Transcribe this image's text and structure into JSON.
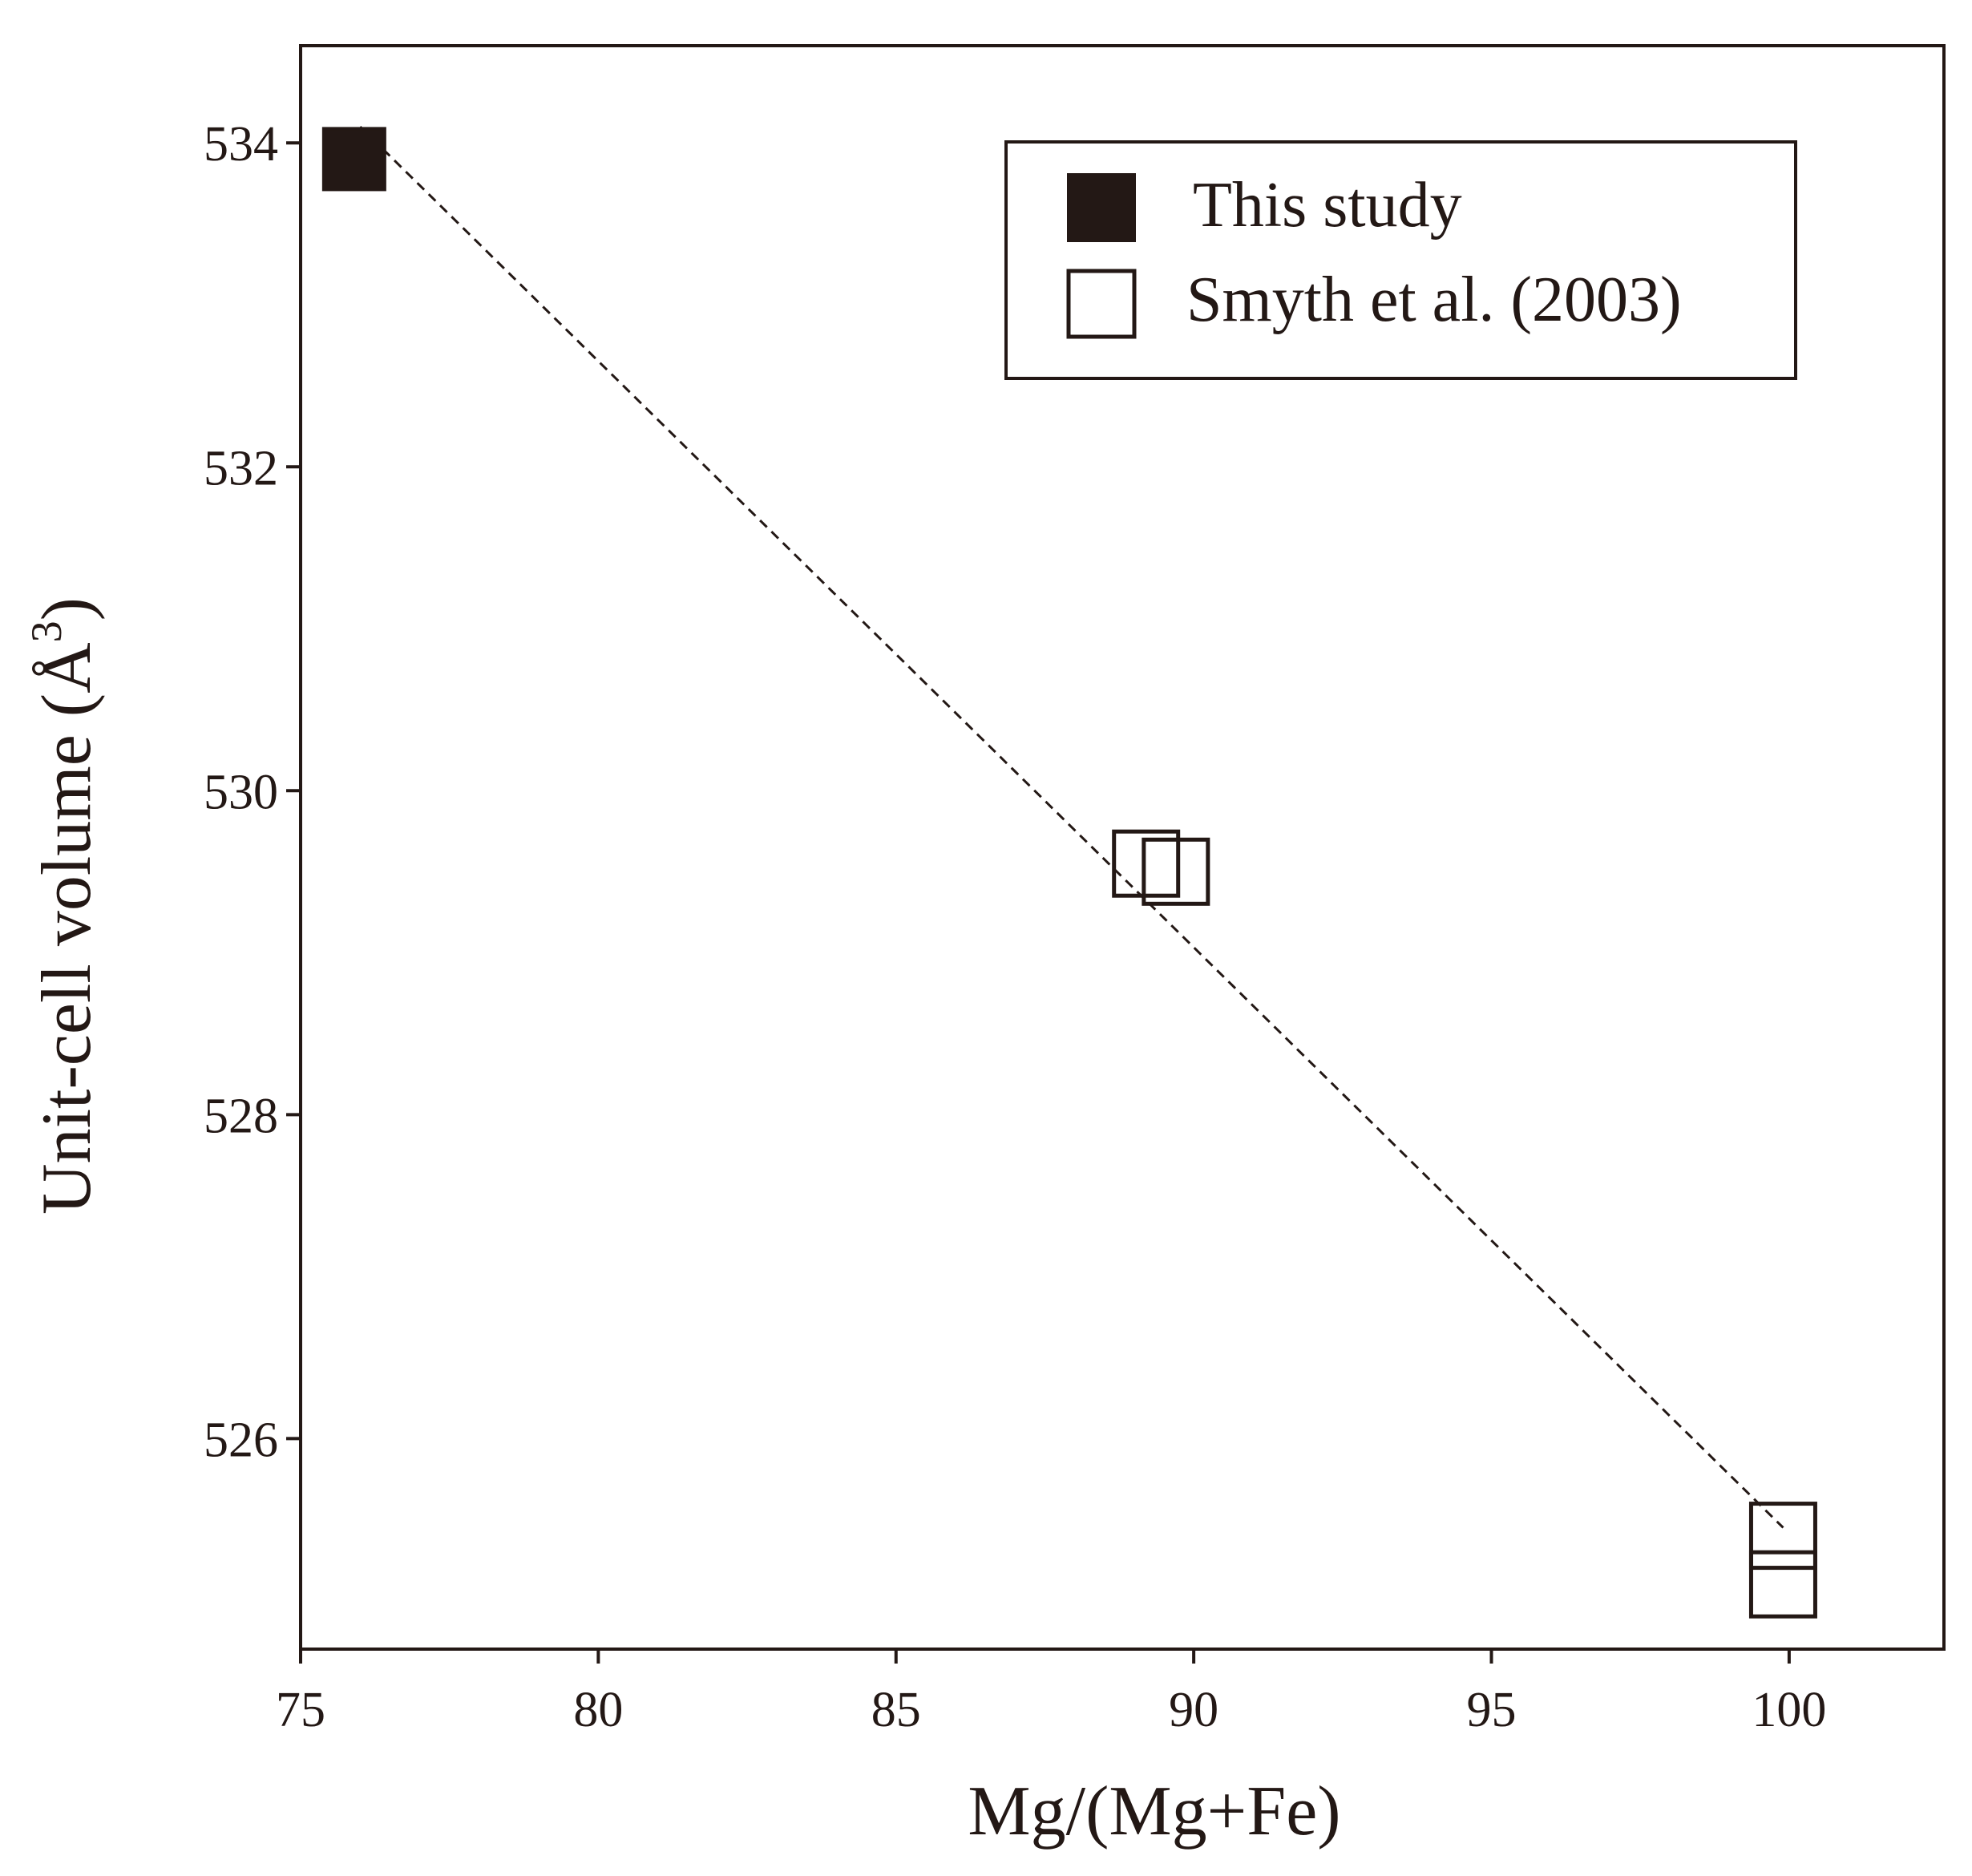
{
  "chart_data": {
    "type": "scatter",
    "xlabel": "Mg/(Mg+Fe)",
    "ylabel": "Unit-cell volume (Å³)",
    "ylabel_main": "Unit-cell volume (",
    "ylabel_unit": "Å",
    "ylabel_sup": "3",
    "ylabel_close": ")",
    "xlim": [
      75,
      102.6
    ],
    "ylim": [
      524.7,
      534.6
    ],
    "x_ticks": [
      75,
      80,
      85,
      90,
      95,
      100
    ],
    "x_tick_labels": [
      "75",
      "80",
      "85",
      "90",
      "95",
      "100"
    ],
    "y_ticks": [
      526,
      528,
      530,
      532,
      534
    ],
    "y_tick_labels": [
      "526",
      "528",
      "530",
      "532",
      "534"
    ],
    "grid": false,
    "legend_position": "top-right",
    "series": [
      {
        "name": "This study",
        "marker": "filled-square",
        "color": "#231815",
        "points": [
          {
            "x": 75.9,
            "y": 533.9
          }
        ]
      },
      {
        "name": "Smyth et al. (2003)",
        "marker": "open-square",
        "color": "#231815",
        "points": [
          {
            "x": 89.2,
            "y": 529.55
          },
          {
            "x": 89.7,
            "y": 529.5
          },
          {
            "x": 99.9,
            "y": 525.4
          },
          {
            "x": 99.9,
            "y": 525.1
          }
        ]
      }
    ],
    "fit_line": {
      "style": "dashed",
      "color": "#231815",
      "from": {
        "x": 76.0,
        "y": 534.1
      },
      "to": {
        "x": 99.9,
        "y": 525.45
      }
    }
  }
}
